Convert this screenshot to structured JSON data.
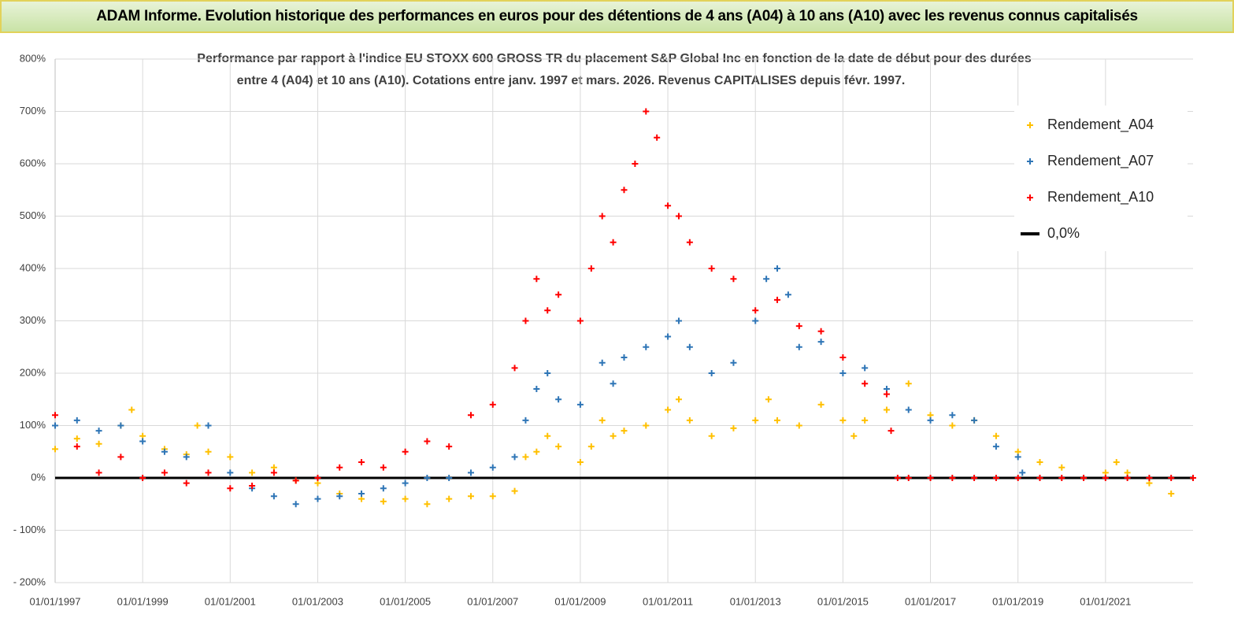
{
  "chart_data": {
    "type": "scatter",
    "title": "ADAM Informe. Evolution historique des performances en euros pour des détentions de 4 ans (A04) à 10 ans (A10) avec les revenus connus capitalisés",
    "subtitle": [
      "Performance par rapport à l'indice EU STOXX 600 GROSS TR  du placement S&P Global Inc en fonction de la date de début pour des durées",
      "entre 4 (A04) et 10 ans (A10). Cotations entre janv. 1997 et mars. 2026. Revenus CAPITALISES depuis févr. 1997."
    ],
    "xlim": [
      1997,
      2023
    ],
    "xticks": [
      {
        "value": 1997,
        "label": "01/01/1997"
      },
      {
        "value": 1999,
        "label": "01/01/1999"
      },
      {
        "value": 2001,
        "label": "01/01/2001"
      },
      {
        "value": 2003,
        "label": "01/01/2003"
      },
      {
        "value": 2005,
        "label": "01/01/2005"
      },
      {
        "value": 2007,
        "label": "01/01/2007"
      },
      {
        "value": 2009,
        "label": "01/01/2009"
      },
      {
        "value": 2011,
        "label": "01/01/2011"
      },
      {
        "value": 2013,
        "label": "01/01/2013"
      },
      {
        "value": 2015,
        "label": "01/01/2015"
      },
      {
        "value": 2017,
        "label": "01/01/2017"
      },
      {
        "value": 2019,
        "label": "01/01/2019"
      },
      {
        "value": 2021,
        "label": "01/01/2021"
      }
    ],
    "ylim": [
      -200,
      800
    ],
    "yticks": [
      {
        "value": -200,
        "label": "- 200%"
      },
      {
        "value": -100,
        "label": "- 100%"
      },
      {
        "value": 0,
        "label": "0%"
      },
      {
        "value": 100,
        "label": "100%"
      },
      {
        "value": 200,
        "label": "200%"
      },
      {
        "value": 300,
        "label": "300%"
      },
      {
        "value": 400,
        "label": "400%"
      },
      {
        "value": 500,
        "label": "500%"
      },
      {
        "value": 600,
        "label": "600%"
      },
      {
        "value": 700,
        "label": "700%"
      },
      {
        "value": 800,
        "label": "800%"
      }
    ],
    "grid": true,
    "legend": "right",
    "series": [
      {
        "name": "Rendement_A04",
        "color": "#ffc000",
        "kind": "scatter",
        "x": [
          1997,
          1997.5,
          1998,
          1998.5,
          1998.75,
          1999,
          1999.5,
          2000,
          2000.25,
          2000.5,
          2001,
          2001.5,
          2002,
          2002.5,
          2003,
          2003.5,
          2004,
          2004.5,
          2005,
          2005.5,
          2006,
          2006.5,
          2007,
          2007.5,
          2007.75,
          2008,
          2008.25,
          2008.5,
          2009,
          2009.25,
          2009.5,
          2009.75,
          2010,
          2010.5,
          2011,
          2011.25,
          2011.5,
          2012,
          2012.5,
          2013,
          2013.3,
          2013.5,
          2014,
          2014.5,
          2015,
          2015.25,
          2015.5,
          2016,
          2016.5,
          2017,
          2017.5,
          2018,
          2018.5,
          2019,
          2019.5,
          2020,
          2020.5,
          2021,
          2021.25,
          2021.5,
          2022,
          2022.5
        ],
        "values": [
          55,
          75,
          65,
          100,
          130,
          80,
          55,
          45,
          100,
          50,
          40,
          10,
          20,
          -5,
          -10,
          -30,
          -40,
          -45,
          -40,
          -50,
          -40,
          -35,
          -35,
          -25,
          40,
          50,
          80,
          60,
          30,
          60,
          110,
          80,
          90,
          100,
          130,
          150,
          110,
          80,
          95,
          110,
          150,
          110,
          100,
          140,
          110,
          80,
          110,
          130,
          180,
          120,
          100,
          110,
          80,
          50,
          30,
          20,
          0,
          10,
          30,
          10,
          -10,
          -30
        ]
      },
      {
        "name": "Rendement_A07",
        "color": "#2e75b6",
        "kind": "scatter",
        "x": [
          1997,
          1997.5,
          1998,
          1998.5,
          1999,
          1999.5,
          2000,
          2000.5,
          2001,
          2001.5,
          2002,
          2002.5,
          2003,
          2003.5,
          2004,
          2004.5,
          2005,
          2005.5,
          2006,
          2006.5,
          2007,
          2007.5,
          2007.75,
          2008,
          2008.25,
          2008.5,
          2009,
          2009.5,
          2009.75,
          2010,
          2010.5,
          2011,
          2011.25,
          2011.5,
          2012,
          2012.5,
          2013,
          2013.25,
          2013.5,
          2013.75,
          2014,
          2014.5,
          2015,
          2015.5,
          2016,
          2016.5,
          2017,
          2017.5,
          2018,
          2018.5,
          2019,
          2019.1
        ],
        "values": [
          100,
          110,
          90,
          100,
          70,
          50,
          40,
          100,
          10,
          -20,
          -35,
          -50,
          -40,
          -35,
          -30,
          -20,
          -10,
          0,
          0,
          10,
          20,
          40,
          110,
          170,
          200,
          150,
          140,
          220,
          180,
          230,
          250,
          270,
          300,
          250,
          200,
          220,
          300,
          380,
          400,
          350,
          250,
          260,
          200,
          210,
          170,
          130,
          110,
          120,
          110,
          60,
          40,
          10
        ]
      },
      {
        "name": "Rendement_A10",
        "color": "#ff0000",
        "kind": "scatter",
        "x": [
          1997,
          1997.5,
          1998,
          1998.5,
          1999,
          1999.5,
          2000,
          2000.5,
          2001,
          2001.5,
          2002,
          2002.5,
          2003,
          2003.5,
          2004,
          2004.5,
          2005,
          2005.5,
          2006,
          2006.5,
          2007,
          2007.5,
          2007.75,
          2008,
          2008.25,
          2008.5,
          2009,
          2009.25,
          2009.5,
          2009.75,
          2010,
          2010.25,
          2010.5,
          2010.75,
          2011,
          2011.25,
          2011.5,
          2012,
          2012.5,
          2013,
          2013.5,
          2014,
          2014.5,
          2015,
          2015.5,
          2016,
          2016.1,
          2016.25,
          2016.5,
          2017,
          2017.5,
          2018,
          2018.5,
          2019,
          2019.5,
          2020,
          2020.5,
          2021,
          2021.5,
          2022,
          2022.5,
          2023
        ],
        "values": [
          120,
          60,
          10,
          40,
          0,
          10,
          -10,
          10,
          -20,
          -15,
          10,
          -5,
          0,
          20,
          30,
          20,
          50,
          70,
          60,
          120,
          140,
          210,
          300,
          380,
          320,
          350,
          300,
          400,
          500,
          450,
          550,
          600,
          700,
          650,
          520,
          500,
          450,
          400,
          380,
          320,
          340,
          290,
          280,
          230,
          180,
          160,
          90,
          0,
          0,
          0,
          0,
          0,
          0,
          0,
          0,
          0,
          0,
          0,
          0,
          0,
          0,
          0
        ]
      },
      {
        "name": "0,0%",
        "color": "#000000",
        "kind": "line",
        "x": [
          1997,
          2023
        ],
        "values": [
          0,
          0
        ]
      }
    ]
  }
}
